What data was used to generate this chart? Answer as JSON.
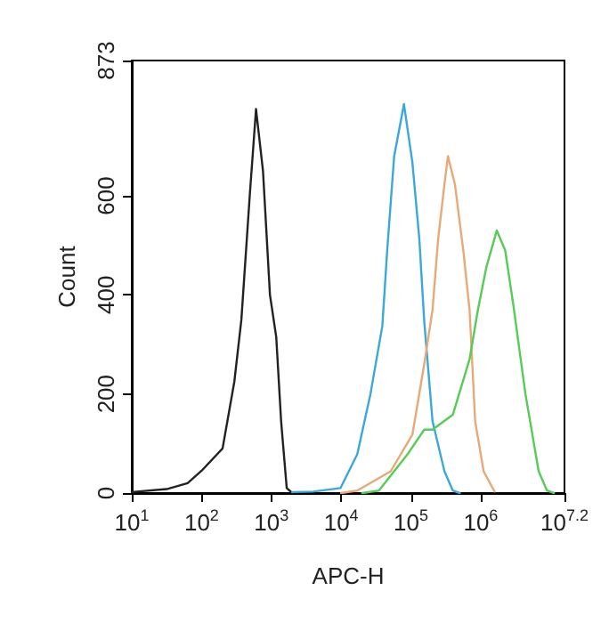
{
  "chart_data": {
    "type": "line",
    "xlabel": "APC-H",
    "ylabel": "Count",
    "log": "x",
    "xlim": [
      10,
      15848932
    ],
    "xticks": [
      {
        "value": 10,
        "label": "10$^{1}$"
      },
      {
        "value": 100,
        "label": "10$^{2}$"
      },
      {
        "value": 1000,
        "label": "10$^{3}$"
      },
      {
        "value": 10000,
        "label": "10$^{4}$"
      },
      {
        "value": 100000,
        "label": "10$^{5}$"
      },
      {
        "value": 1000000,
        "label": "10$^{6}$"
      },
      {
        "value": 15848932,
        "label": "10$^{7.2}$"
      }
    ],
    "ylim": [
      0,
      873
    ],
    "yticks": [
      0,
      200,
      400,
      600,
      873
    ],
    "grid": false,
    "marker": "none",
    "line_style": "solid",
    "series": [
      {
        "color": "#222222",
        "x": [
          10,
          31.6,
          63.1,
          100,
          200,
          295,
          372,
          490,
          603,
          759,
          955,
          1175,
          1380,
          1660,
          1995
        ],
        "values": [
          2,
          8,
          20,
          45,
          90,
          225,
          350,
          600,
          775,
          650,
          400,
          315,
          145,
          10,
          0
        ]
      },
      {
        "color": "#3aa8d8",
        "x": [
          1995,
          3981,
          9772,
          17000,
          26300,
          38900,
          45700,
          57500,
          79400,
          105000,
          132000,
          155000,
          204000,
          302000,
          398000,
          501000
        ],
        "values": [
          2,
          3,
          10,
          78,
          200,
          337,
          490,
          680,
          785,
          667,
          512,
          347,
          145,
          44,
          5,
          0
        ]
      },
      {
        "color": "#e8a878",
        "x": [
          10000,
          17000,
          51300,
          105000,
          155000,
          204000,
          245000,
          302000,
          339000,
          427000,
          562000,
          692000,
          832000,
          1100000,
          1580000
        ],
        "values": [
          0,
          5,
          44,
          118,
          260,
          370,
          512,
          623,
          680,
          623,
          490,
          370,
          145,
          44,
          3
        ]
      },
      {
        "color": "#55cc55",
        "x": [
          20000,
          34700,
          89100,
          155000,
          204000,
          398000,
          692000,
          912000,
          1200000,
          1700000,
          2240000,
          2950000,
          4370000,
          6760000,
          8910000,
          11200000
        ],
        "values": [
          0,
          5,
          78,
          128,
          128,
          158,
          270,
          370,
          455,
          530,
          490,
          377,
          200,
          44,
          5,
          0
        ]
      }
    ]
  }
}
